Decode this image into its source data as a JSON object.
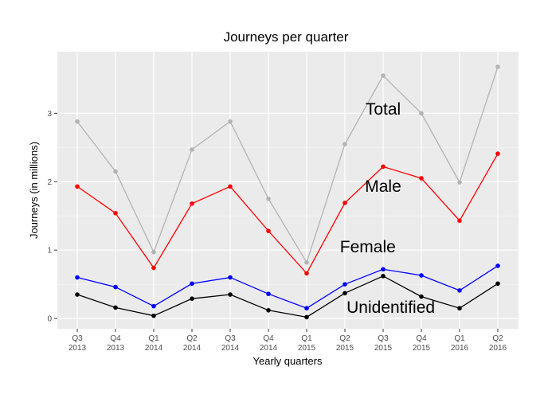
{
  "chart_data": {
    "type": "line",
    "title": "Journeys per quarter",
    "xlabel": "Yearly quarters",
    "ylabel": "Journeys (in millions)",
    "categories": [
      [
        "Q3",
        "2013"
      ],
      [
        "Q4",
        "2013"
      ],
      [
        "Q1",
        "2014"
      ],
      [
        "Q2",
        "2014"
      ],
      [
        "Q3",
        "2014"
      ],
      [
        "Q4",
        "2014"
      ],
      [
        "Q1",
        "2015"
      ],
      [
        "Q2",
        "2015"
      ],
      [
        "Q3",
        "2015"
      ],
      [
        "Q4",
        "2015"
      ],
      [
        "Q1",
        "2016"
      ],
      [
        "Q2",
        "2016"
      ]
    ],
    "ylim": [
      -0.15,
      3.9
    ],
    "yticks": [
      0,
      1,
      2,
      3
    ],
    "grid": true,
    "legend": "none",
    "series": [
      {
        "name": "Total",
        "color": "#b3b3b3",
        "values": [
          2.88,
          2.15,
          0.97,
          2.47,
          2.88,
          1.75,
          0.82,
          2.55,
          3.55,
          3.0,
          1.99,
          3.68
        ],
        "label_pos": [
          8,
          2.98
        ]
      },
      {
        "name": "Male",
        "color": "#ff0000",
        "values": [
          1.93,
          1.54,
          0.74,
          1.68,
          1.93,
          1.28,
          0.66,
          1.69,
          2.22,
          2.05,
          1.43,
          2.41
        ],
        "label_pos": [
          8,
          1.85
        ]
      },
      {
        "name": "Female",
        "color": "#0000ff",
        "values": [
          0.6,
          0.46,
          0.18,
          0.51,
          0.6,
          0.36,
          0.15,
          0.5,
          0.72,
          0.63,
          0.41,
          0.77
        ],
        "label_pos": [
          7.6,
          0.97
        ]
      },
      {
        "name": "Unidentified",
        "color": "#000000",
        "values": [
          0.35,
          0.16,
          0.04,
          0.29,
          0.35,
          0.12,
          0.02,
          0.37,
          0.62,
          0.32,
          0.15,
          0.51
        ],
        "label_pos": [
          8.2,
          0.08
        ]
      }
    ]
  }
}
